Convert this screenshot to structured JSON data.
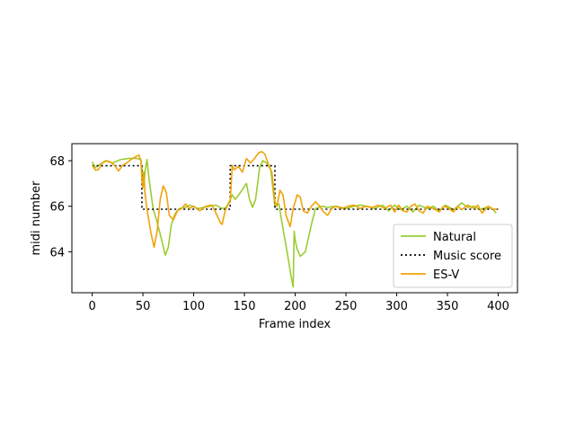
{
  "chart_data": {
    "type": "line",
    "title": "",
    "xlabel": "Frame index",
    "ylabel": "midi number",
    "xlim": [
      -20,
      419
    ],
    "ylim": [
      62.2,
      68.75
    ],
    "xticks": [
      0,
      50,
      100,
      150,
      200,
      250,
      300,
      350,
      400
    ],
    "yticks": [
      64,
      66,
      68
    ],
    "grid": false,
    "legend_position": "lower-right",
    "series": [
      {
        "name": "Natural",
        "color": "#9acd32",
        "style": "solid",
        "points": [
          [
            0,
            67.95
          ],
          [
            3,
            67.7
          ],
          [
            8,
            67.85
          ],
          [
            13,
            68.0
          ],
          [
            20,
            67.9
          ],
          [
            28,
            68.05
          ],
          [
            36,
            68.1
          ],
          [
            44,
            68.1
          ],
          [
            48,
            68.05
          ],
          [
            50,
            67.3
          ],
          [
            51,
            66.9
          ],
          [
            52,
            67.5
          ],
          [
            54,
            68.05
          ],
          [
            56,
            67.2
          ],
          [
            60,
            65.9
          ],
          [
            64,
            65.3
          ],
          [
            68,
            64.6
          ],
          [
            72,
            63.85
          ],
          [
            75,
            64.2
          ],
          [
            78,
            65.2
          ],
          [
            82,
            65.7
          ],
          [
            86,
            65.9
          ],
          [
            92,
            65.95
          ],
          [
            96,
            66.05
          ],
          [
            104,
            65.9
          ],
          [
            110,
            65.95
          ],
          [
            116,
            66.0
          ],
          [
            122,
            66.05
          ],
          [
            128,
            65.9
          ],
          [
            132,
            65.95
          ],
          [
            135,
            66.2
          ],
          [
            138,
            66.5
          ],
          [
            141,
            66.3
          ],
          [
            146,
            66.6
          ],
          [
            152,
            67.0
          ],
          [
            155,
            66.3
          ],
          [
            158,
            65.95
          ],
          [
            161,
            66.3
          ],
          [
            165,
            67.7
          ],
          [
            168,
            68.0
          ],
          [
            172,
            67.9
          ],
          [
            176,
            67.6
          ],
          [
            180,
            66.0
          ],
          [
            184,
            66.1
          ],
          [
            188,
            65.0
          ],
          [
            192,
            64.0
          ],
          [
            196,
            62.9
          ],
          [
            198,
            62.45
          ],
          [
            199,
            64.9
          ],
          [
            200,
            64.5
          ],
          [
            202,
            64.1
          ],
          [
            205,
            63.8
          ],
          [
            210,
            64.0
          ],
          [
            216,
            65.2
          ],
          [
            220,
            65.9
          ],
          [
            226,
            66.0
          ],
          [
            232,
            65.95
          ],
          [
            240,
            66.0
          ],
          [
            250,
            65.9
          ],
          [
            258,
            66.0
          ],
          [
            264,
            66.05
          ],
          [
            270,
            66.0
          ],
          [
            278,
            65.9
          ],
          [
            286,
            66.05
          ],
          [
            292,
            65.8
          ],
          [
            298,
            66.05
          ],
          [
            304,
            65.85
          ],
          [
            310,
            66.0
          ],
          [
            316,
            65.75
          ],
          [
            322,
            66.05
          ],
          [
            330,
            65.9
          ],
          [
            336,
            66.0
          ],
          [
            342,
            65.8
          ],
          [
            348,
            66.05
          ],
          [
            356,
            65.85
          ],
          [
            364,
            66.15
          ],
          [
            370,
            65.95
          ],
          [
            376,
            66.0
          ],
          [
            382,
            65.85
          ],
          [
            388,
            65.95
          ],
          [
            394,
            65.9
          ],
          [
            398,
            65.7
          ]
        ]
      },
      {
        "name": "Music score",
        "color": "#000000",
        "style": "dotted",
        "points": [
          [
            0,
            67.78
          ],
          [
            49,
            67.78
          ],
          [
            49,
            65.87
          ],
          [
            136,
            65.87
          ],
          [
            136,
            67.78
          ],
          [
            180,
            67.78
          ],
          [
            180,
            65.87
          ],
          [
            400,
            65.87
          ]
        ]
      },
      {
        "name": "ES-V",
        "color": "#f0a30a",
        "style": "solid",
        "points": [
          [
            0,
            67.8
          ],
          [
            3,
            67.6
          ],
          [
            6,
            67.6
          ],
          [
            10,
            67.9
          ],
          [
            14,
            68.0
          ],
          [
            18,
            67.95
          ],
          [
            22,
            67.8
          ],
          [
            26,
            67.55
          ],
          [
            30,
            67.8
          ],
          [
            34,
            67.9
          ],
          [
            38,
            68.05
          ],
          [
            42,
            68.15
          ],
          [
            46,
            68.25
          ],
          [
            48,
            68.0
          ],
          [
            49,
            67.2
          ],
          [
            50,
            66.8
          ],
          [
            51,
            67.5
          ],
          [
            52,
            66.6
          ],
          [
            53,
            66.2
          ],
          [
            55,
            65.6
          ],
          [
            58,
            64.8
          ],
          [
            61,
            64.2
          ],
          [
            64,
            64.9
          ],
          [
            67,
            66.3
          ],
          [
            70,
            66.9
          ],
          [
            73,
            66.6
          ],
          [
            76,
            65.6
          ],
          [
            80,
            65.4
          ],
          [
            84,
            65.8
          ],
          [
            88,
            65.9
          ],
          [
            92,
            66.1
          ],
          [
            96,
            65.9
          ],
          [
            100,
            66.0
          ],
          [
            106,
            65.8
          ],
          [
            112,
            66.0
          ],
          [
            118,
            66.05
          ],
          [
            122,
            65.7
          ],
          [
            126,
            65.3
          ],
          [
            128,
            65.2
          ],
          [
            131,
            65.8
          ],
          [
            134,
            66.1
          ],
          [
            136,
            66.2
          ],
          [
            138,
            67.8
          ],
          [
            140,
            67.6
          ],
          [
            144,
            67.75
          ],
          [
            148,
            67.5
          ],
          [
            152,
            68.1
          ],
          [
            156,
            67.9
          ],
          [
            160,
            68.1
          ],
          [
            164,
            68.35
          ],
          [
            167,
            68.4
          ],
          [
            170,
            68.3
          ],
          [
            174,
            67.8
          ],
          [
            177,
            67.5
          ],
          [
            180,
            66.2
          ],
          [
            182,
            66.0
          ],
          [
            185,
            66.7
          ],
          [
            188,
            66.5
          ],
          [
            191,
            65.6
          ],
          [
            195,
            65.1
          ],
          [
            198,
            65.9
          ],
          [
            202,
            66.5
          ],
          [
            205,
            66.4
          ],
          [
            208,
            65.8
          ],
          [
            212,
            65.7
          ],
          [
            216,
            66.0
          ],
          [
            220,
            66.2
          ],
          [
            224,
            66.0
          ],
          [
            228,
            65.75
          ],
          [
            232,
            65.6
          ],
          [
            236,
            65.9
          ],
          [
            240,
            66.0
          ],
          [
            246,
            65.9
          ],
          [
            252,
            66.0
          ],
          [
            258,
            66.05
          ],
          [
            264,
            65.9
          ],
          [
            270,
            66.0
          ],
          [
            276,
            65.95
          ],
          [
            282,
            66.05
          ],
          [
            288,
            65.9
          ],
          [
            294,
            66.05
          ],
          [
            298,
            65.75
          ],
          [
            302,
            66.05
          ],
          [
            306,
            65.8
          ],
          [
            310,
            65.75
          ],
          [
            314,
            66.0
          ],
          [
            318,
            66.1
          ],
          [
            322,
            65.8
          ],
          [
            326,
            65.7
          ],
          [
            330,
            66.0
          ],
          [
            336,
            65.9
          ],
          [
            342,
            65.75
          ],
          [
            346,
            66.0
          ],
          [
            350,
            65.95
          ],
          [
            356,
            65.75
          ],
          [
            360,
            66.0
          ],
          [
            364,
            65.85
          ],
          [
            370,
            66.05
          ],
          [
            376,
            65.9
          ],
          [
            380,
            66.05
          ],
          [
            384,
            65.7
          ],
          [
            390,
            66.0
          ],
          [
            396,
            65.85
          ],
          [
            399,
            65.9
          ]
        ]
      }
    ],
    "legend": [
      {
        "label": "Natural",
        "color": "#9acd32",
        "style": "solid"
      },
      {
        "label": "Music score",
        "color": "#000000",
        "style": "dotted"
      },
      {
        "label": "ES-V",
        "color": "#f0a30a",
        "style": "solid"
      }
    ]
  }
}
